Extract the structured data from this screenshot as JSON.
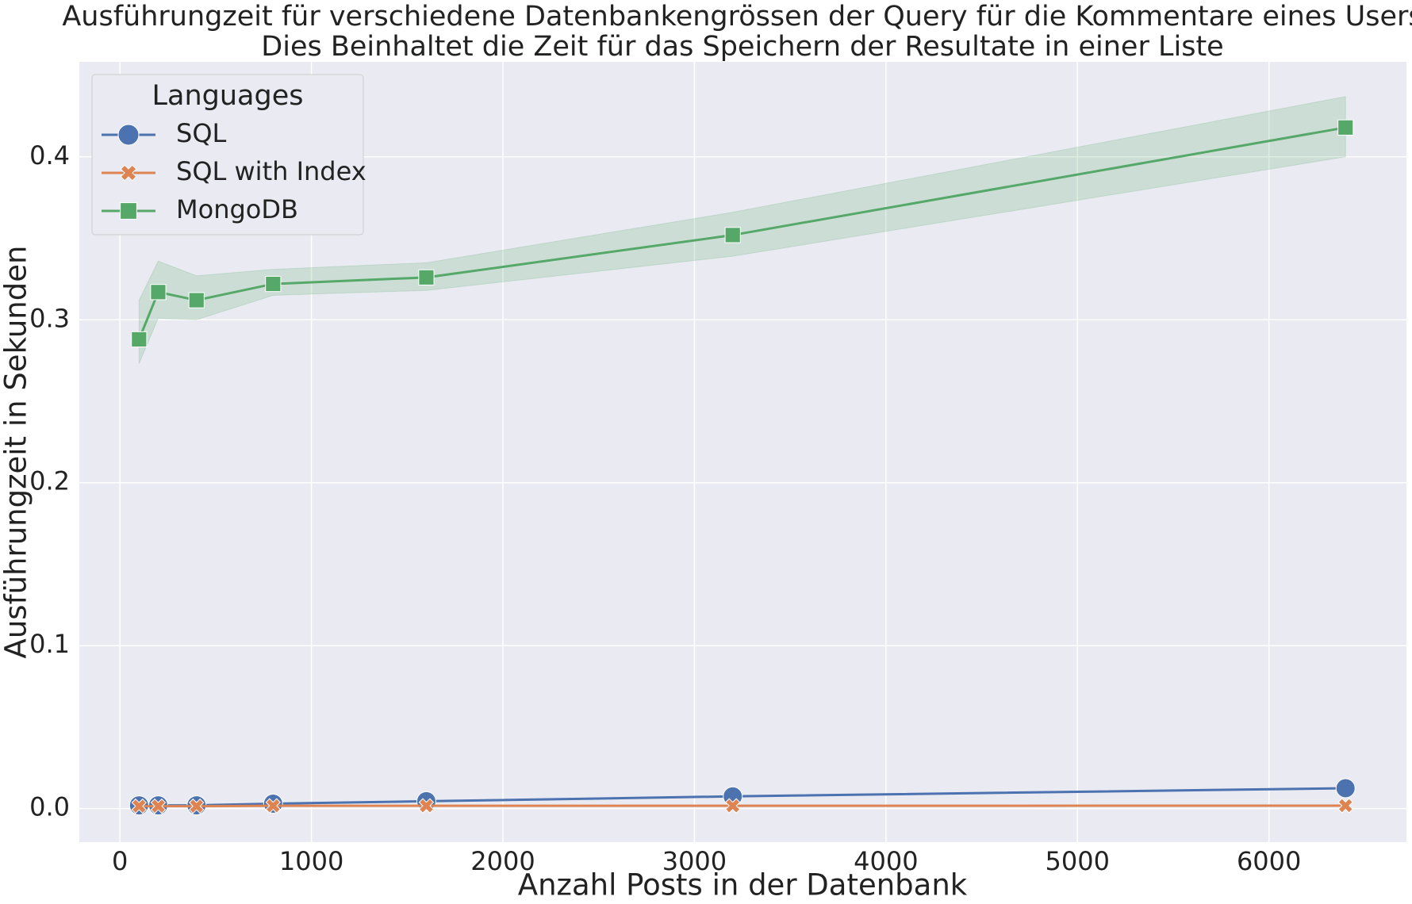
{
  "chart_data": {
    "type": "line",
    "title": "Ausführungzeit für verschiedene Datenbankengrössen der Query für die Kommentare eines Users",
    "subtitle": "Dies Beinhaltet die Zeit für das Speichern der Resultate in einer Liste",
    "x_label": "Anzahl Posts in der Datenbank",
    "y_label": "Ausführungzeit in Sekunden",
    "x": [
      100,
      200,
      400,
      800,
      1600,
      3200,
      6400
    ],
    "xlim": [
      -212,
      6718
    ],
    "xticks": [
      0,
      1000,
      2000,
      3000,
      4000,
      5000,
      6000
    ],
    "ylim": [
      -0.0206,
      0.4583
    ],
    "yticks": [
      {
        "value": 0,
        "label": "0.0"
      },
      0.1,
      0.2,
      0.3,
      0.4
    ],
    "grid": true,
    "legend_title": "Languages",
    "legend_position": "upper left",
    "series": [
      {
        "name": "SQL",
        "color": "#4c72b0",
        "marker": "circle",
        "values": [
          0.002,
          0.002,
          0.002,
          0.003,
          0.0045,
          0.0075,
          0.0125
        ]
      },
      {
        "name": "SQL with Index",
        "color": "#dd8452",
        "marker": "cross",
        "values": [
          0.0015,
          0.0015,
          0.0015,
          0.0017,
          0.0017,
          0.0017,
          0.0018
        ]
      },
      {
        "name": "MongoDB",
        "color": "#55a868",
        "marker": "square",
        "values": [
          0.288,
          0.317,
          0.312,
          0.322,
          0.326,
          0.352,
          0.418
        ],
        "ci_lower": [
          0.273,
          0.301,
          0.3,
          0.315,
          0.318,
          0.339,
          0.4
        ],
        "ci_upper": [
          0.312,
          0.336,
          0.327,
          0.331,
          0.335,
          0.366,
          0.437
        ]
      }
    ]
  }
}
